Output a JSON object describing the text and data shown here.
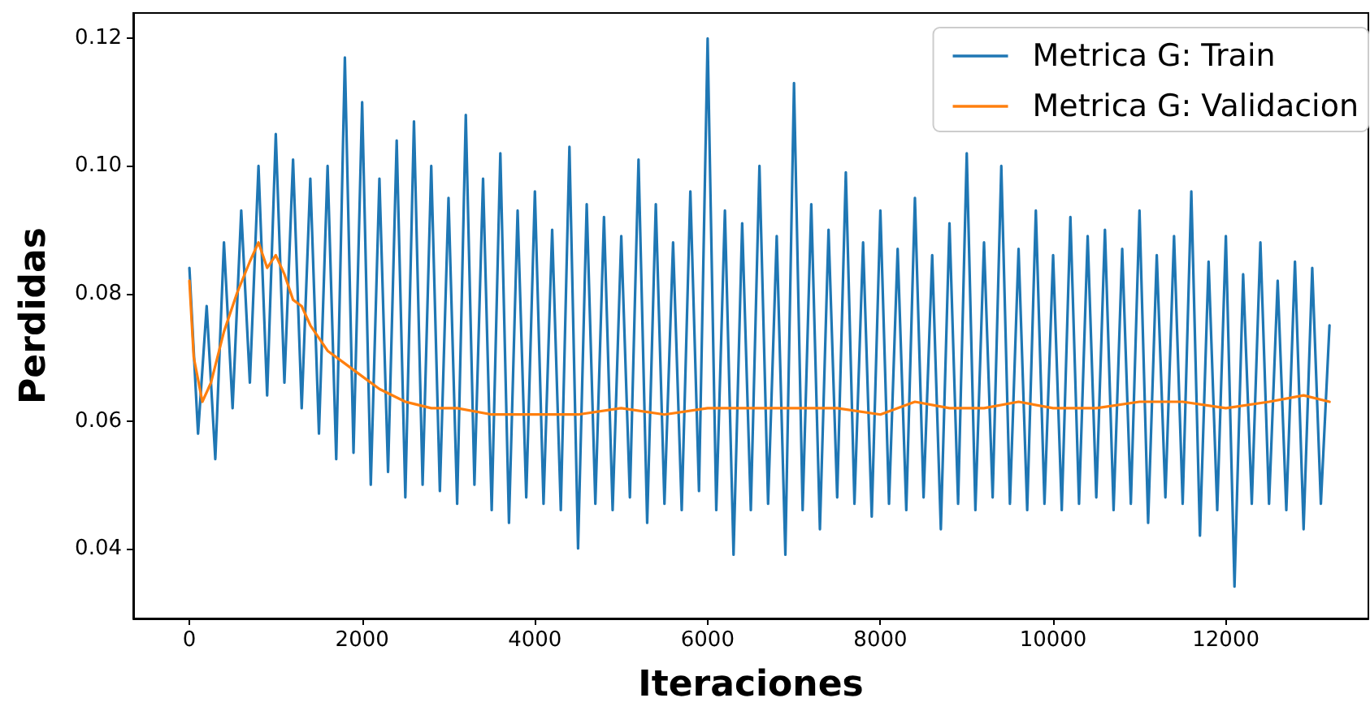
{
  "chart_data": {
    "type": "line",
    "xlabel": "Iteraciones",
    "ylabel": "Perdidas",
    "xlim": [
      -650,
      13650
    ],
    "ylim": [
      0.029,
      0.124
    ],
    "xticks": [
      0,
      2000,
      4000,
      6000,
      8000,
      10000,
      12000
    ],
    "yticks": [
      0.04,
      0.06,
      0.08,
      {
        "value": 0.1,
        "label": "0.10"
      },
      0.12
    ],
    "grid": false,
    "legend": "top right",
    "marker": "none",
    "line_style": "solid",
    "series": [
      {
        "name": "Metrica G: Train",
        "color": "#1f77b4",
        "x": [
          0,
          100,
          200,
          300,
          400,
          500,
          600,
          700,
          800,
          900,
          1000,
          1100,
          1200,
          1300,
          1400,
          1500,
          1600,
          1700,
          1800,
          1900,
          2000,
          2100,
          2200,
          2300,
          2400,
          2500,
          2600,
          2700,
          2800,
          2900,
          3000,
          3100,
          3200,
          3300,
          3400,
          3500,
          3600,
          3700,
          3800,
          3900,
          4000,
          4100,
          4200,
          4300,
          4400,
          4500,
          4600,
          4700,
          4800,
          4900,
          5000,
          5100,
          5200,
          5300,
          5400,
          5500,
          5600,
          5700,
          5800,
          5900,
          6000,
          6100,
          6200,
          6300,
          6400,
          6500,
          6600,
          6700,
          6800,
          6900,
          7000,
          7100,
          7200,
          7300,
          7400,
          7500,
          7600,
          7700,
          7800,
          7900,
          8000,
          8100,
          8200,
          8300,
          8400,
          8500,
          8600,
          8700,
          8800,
          8900,
          9000,
          9100,
          9200,
          9300,
          9400,
          9500,
          9600,
          9700,
          9800,
          9900,
          10000,
          10100,
          10200,
          10300,
          10400,
          10500,
          10600,
          10700,
          10800,
          10900,
          11000,
          11100,
          11200,
          11300,
          11400,
          11500,
          11600,
          11700,
          11800,
          11900,
          12000,
          12100,
          12200,
          12300,
          12400,
          12500,
          12600,
          12700,
          12800,
          12900,
          13000,
          13100,
          13200
        ],
        "values": [
          0.084,
          0.058,
          0.078,
          0.054,
          0.088,
          0.062,
          0.093,
          0.066,
          0.1,
          0.064,
          0.105,
          0.066,
          0.101,
          0.062,
          0.098,
          0.058,
          0.1,
          0.054,
          0.117,
          0.055,
          0.11,
          0.05,
          0.098,
          0.052,
          0.104,
          0.048,
          0.107,
          0.05,
          0.1,
          0.049,
          0.095,
          0.047,
          0.108,
          0.05,
          0.098,
          0.046,
          0.102,
          0.044,
          0.093,
          0.048,
          0.096,
          0.047,
          0.09,
          0.046,
          0.103,
          0.04,
          0.094,
          0.047,
          0.092,
          0.046,
          0.089,
          0.048,
          0.101,
          0.044,
          0.094,
          0.047,
          0.088,
          0.046,
          0.096,
          0.049,
          0.12,
          0.046,
          0.093,
          0.039,
          0.091,
          0.046,
          0.1,
          0.047,
          0.089,
          0.039,
          0.113,
          0.046,
          0.094,
          0.043,
          0.09,
          0.048,
          0.099,
          0.047,
          0.088,
          0.045,
          0.093,
          0.047,
          0.087,
          0.046,
          0.095,
          0.048,
          0.086,
          0.043,
          0.091,
          0.047,
          0.102,
          0.046,
          0.088,
          0.048,
          0.1,
          0.047,
          0.087,
          0.046,
          0.093,
          0.047,
          0.086,
          0.046,
          0.092,
          0.047,
          0.089,
          0.048,
          0.09,
          0.046,
          0.087,
          0.047,
          0.093,
          0.044,
          0.086,
          0.048,
          0.089,
          0.047,
          0.096,
          0.042,
          0.085,
          0.046,
          0.089,
          0.034,
          0.083,
          0.047,
          0.088,
          0.047,
          0.082,
          0.046,
          0.085,
          0.043,
          0.084,
          0.047,
          0.075
        ]
      },
      {
        "name": "Metrica G: Validacion",
        "color": "#ff7f0e",
        "x": [
          0,
          50,
          150,
          250,
          400,
          550,
          700,
          800,
          900,
          1000,
          1100,
          1200,
          1300,
          1400,
          1600,
          1800,
          2000,
          2200,
          2500,
          2800,
          3100,
          3500,
          3800,
          4000,
          4500,
          5000,
          5500,
          6000,
          6500,
          7000,
          7500,
          8000,
          8400,
          8800,
          9200,
          9600,
          10000,
          10500,
          11000,
          11500,
          12000,
          12500,
          12900,
          13200
        ],
        "values": [
          0.082,
          0.07,
          0.063,
          0.066,
          0.074,
          0.08,
          0.085,
          0.088,
          0.084,
          0.086,
          0.083,
          0.079,
          0.078,
          0.075,
          0.071,
          0.069,
          0.067,
          0.065,
          0.063,
          0.062,
          0.062,
          0.061,
          0.061,
          0.061,
          0.061,
          0.062,
          0.061,
          0.062,
          0.062,
          0.062,
          0.062,
          0.061,
          0.063,
          0.062,
          0.062,
          0.063,
          0.062,
          0.062,
          0.063,
          0.063,
          0.062,
          0.063,
          0.064,
          0.063
        ]
      }
    ]
  }
}
